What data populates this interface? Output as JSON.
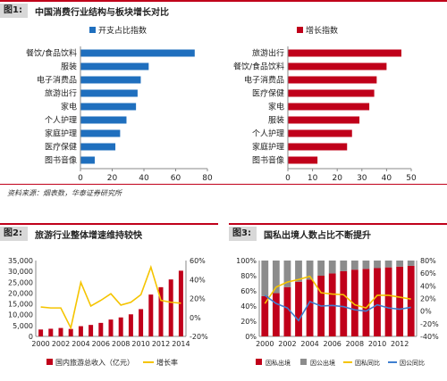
{
  "figures": {
    "fig1": {
      "number": "图1:",
      "title": "中国消费行业结构与板块增长对比"
    },
    "fig2": {
      "number": "图2:",
      "title": "旅游行业整体增速维持较快"
    },
    "fig3": {
      "number": "图3:",
      "title": "国私出境人数占比不断提升"
    }
  },
  "source_note": "资料来源：烟表数，华泰证券研究所",
  "colors": {
    "rule": "#c0001a",
    "blue_bar": "#1f6fbe",
    "red_bar": "#c0001a",
    "gray_bar": "#8c8c8c",
    "yellow_line": "#f5c400",
    "blue_line": "#3f7fd0"
  },
  "chart_data": [
    {
      "type": "bar",
      "orientation": "horizontal",
      "legend": [
        "开支占比指数"
      ],
      "categories": [
        "餐饮/食品饮料",
        "服装",
        "电子消费品",
        "旅游出行",
        "家电",
        "个人护理",
        "家庭护理",
        "医疗保健",
        "图书音像"
      ],
      "values": [
        72,
        43,
        38,
        36,
        35,
        29,
        25,
        22,
        9
      ],
      "xlim": [
        0,
        80
      ],
      "xticks": [
        0,
        20,
        40,
        60,
        80
      ],
      "grid": false
    },
    {
      "type": "bar",
      "orientation": "horizontal",
      "legend": [
        "增长指数"
      ],
      "categories": [
        "旅游出行",
        "餐饮/食品饮料",
        "电子消费品",
        "医疗保健",
        "家电",
        "服装",
        "个人护理",
        "家庭护理",
        "图书音像"
      ],
      "values": [
        46,
        40,
        36,
        35,
        33,
        29,
        26,
        24,
        12
      ],
      "xlim": [
        0,
        50
      ],
      "xticks": [
        0,
        10,
        20,
        30,
        40,
        50
      ],
      "grid": false
    },
    {
      "type": "bar+line",
      "x": [
        "2000",
        "2001",
        "2002",
        "2003",
        "2004",
        "2005",
        "2006",
        "2007",
        "2008",
        "2009",
        "2010",
        "2011",
        "2012",
        "2013",
        "2014"
      ],
      "xticks": [
        "2000",
        "2002",
        "2004",
        "2006",
        "2008",
        "2010",
        "2012",
        "2014"
      ],
      "series": [
        {
          "name": "国内旅游总收入（亿元）",
          "type": "bar",
          "axis": "left",
          "values": [
            3175,
            3522,
            3878,
            3442,
            4711,
            5286,
            6230,
            7771,
            8749,
            10184,
            12580,
            19305,
            22706,
            26276,
            30312
          ]
        },
        {
          "name": "增长率",
          "type": "line",
          "axis": "right",
          "values": [
            11,
            10,
            10,
            -11,
            37,
            12,
            18,
            25,
            13,
            16,
            24,
            53,
            18,
            16,
            15
          ]
        }
      ],
      "ylim_left": [
        0,
        35000
      ],
      "yticks_left": [
        "0",
        "5,000",
        "10,000",
        "15,000",
        "20,000",
        "25,000",
        "30,000",
        "35,000"
      ],
      "ylim_right": [
        -20,
        60
      ],
      "yticks_right": [
        "-20%",
        "0%",
        "20%",
        "40%",
        "60%"
      ],
      "legend_position": "bottom"
    },
    {
      "type": "stacked-bar+line",
      "x": [
        "2000",
        "2001",
        "2002",
        "2003",
        "2004",
        "2005",
        "2006",
        "2007",
        "2008",
        "2009",
        "2010",
        "2011",
        "2012",
        "2013"
      ],
      "xticks": [
        "2000",
        "2002",
        "2004",
        "2006",
        "2008",
        "2010",
        "2012"
      ],
      "series": [
        {
          "name": "因私出境",
          "type": "bar",
          "axis": "left",
          "values": [
            53,
            57,
            65,
            72,
            75,
            80,
            83,
            86,
            88,
            89,
            90,
            91,
            92,
            93
          ]
        },
        {
          "name": "因公出境",
          "type": "bar",
          "axis": "left",
          "values": [
            47,
            43,
            35,
            28,
            25,
            20,
            17,
            14,
            12,
            11,
            10,
            9,
            8,
            7
          ]
        },
        {
          "name": "因私同比",
          "type": "line",
          "axis": "right",
          "values": [
            12,
            38,
            46,
            50,
            55,
            29,
            27,
            26,
            10,
            5,
            25,
            25,
            22,
            19
          ]
        },
        {
          "name": "因公同比",
          "type": "line",
          "axis": "right",
          "values": [
            25,
            12,
            5,
            -15,
            15,
            8,
            9,
            7,
            2,
            0,
            10,
            5,
            3,
            6
          ]
        }
      ],
      "ylim_left": [
        0,
        100
      ],
      "yticks_left": [
        "0%",
        "20%",
        "40%",
        "60%",
        "80%",
        "100%"
      ],
      "ylim_right": [
        -40,
        80
      ],
      "yticks_right": [
        "-40%",
        "-20%",
        "0%",
        "20%",
        "40%",
        "60%",
        "80%"
      ],
      "legend_position": "bottom"
    }
  ]
}
